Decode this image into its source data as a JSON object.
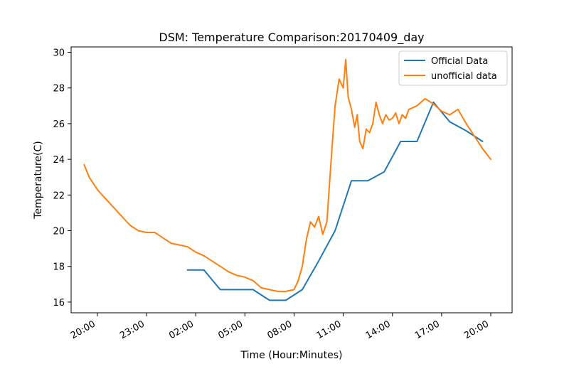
{
  "chart_data": {
    "type": "line",
    "title": "DSM: Temperature Comparison:20170409_day",
    "xlabel": "Time (Hour:Minutes)",
    "ylabel": "Temperature(C)",
    "x_ticks": [
      "20:00",
      "23:00",
      "02:00",
      "05:00",
      "08:00",
      "11:00",
      "14:00",
      "17:00",
      "20:00"
    ],
    "y_ticks": [
      "16",
      "18",
      "20",
      "22",
      "24",
      "26",
      "28",
      "30"
    ],
    "xlim_hours": [
      -1.6,
      25.3
    ],
    "ylim": [
      15.4,
      30.3
    ],
    "grid": false,
    "legend_position": "top-right",
    "series": [
      {
        "name": "Official Data",
        "color": "#1f77b4",
        "x_hours": [
          5.5,
          6.5,
          7.5,
          8.5,
          9.5,
          10.5,
          11.5,
          12.5,
          13.5,
          14.5,
          15.5,
          16.5,
          17.5,
          18.5,
          19.5,
          20.5,
          21.5,
          22.5,
          23.5
        ],
        "y": [
          17.8,
          17.8,
          16.7,
          16.7,
          16.7,
          16.1,
          16.1,
          16.7,
          18.3,
          20.0,
          22.8,
          22.8,
          23.3,
          25.0,
          25.0,
          27.2,
          26.1,
          25.6,
          25.0
        ]
      },
      {
        "name": "unofficial data",
        "color": "#ff7f0e",
        "x_hours": [
          -0.8,
          -0.5,
          0.0,
          0.5,
          1.0,
          1.5,
          2.0,
          2.5,
          3.0,
          3.5,
          4.0,
          4.5,
          5.0,
          5.5,
          6.0,
          6.5,
          7.0,
          7.5,
          8.0,
          8.5,
          9.0,
          9.5,
          10.0,
          10.5,
          11.0,
          11.5,
          12.0,
          12.25,
          12.5,
          12.75,
          13.0,
          13.25,
          13.5,
          13.75,
          14.0,
          14.25,
          14.5,
          14.75,
          15.0,
          15.15,
          15.3,
          15.5,
          15.7,
          15.85,
          16.0,
          16.2,
          16.4,
          16.6,
          16.8,
          17.0,
          17.2,
          17.4,
          17.6,
          17.8,
          18.0,
          18.2,
          18.4,
          18.6,
          18.8,
          19.0,
          19.5,
          20.0,
          20.5,
          21.0,
          21.5,
          22.0,
          22.5,
          23.0,
          23.5,
          24.0
        ],
        "y": [
          23.7,
          23.0,
          22.3,
          21.8,
          21.3,
          20.8,
          20.3,
          20.0,
          19.9,
          19.9,
          19.6,
          19.3,
          19.2,
          19.1,
          18.8,
          18.6,
          18.3,
          18.0,
          17.7,
          17.5,
          17.4,
          17.2,
          16.8,
          16.7,
          16.6,
          16.6,
          16.7,
          17.2,
          18.0,
          19.5,
          20.5,
          20.2,
          20.8,
          19.8,
          20.5,
          23.8,
          27.0,
          28.5,
          28.0,
          29.6,
          27.5,
          26.8,
          25.8,
          26.5,
          25.0,
          24.6,
          25.7,
          25.5,
          26.0,
          27.2,
          26.5,
          26.0,
          26.5,
          26.2,
          26.3,
          26.6,
          26.0,
          26.5,
          26.3,
          26.8,
          27.0,
          27.4,
          27.1,
          26.7,
          26.5,
          26.8,
          26.0,
          25.3,
          24.6,
          24.0
        ]
      }
    ]
  }
}
